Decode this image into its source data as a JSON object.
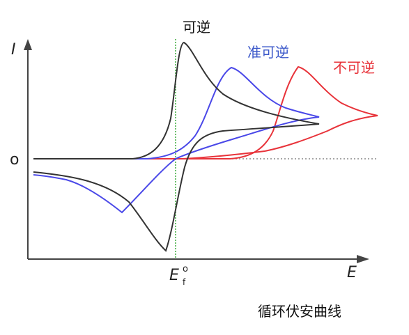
{
  "chart_data": {
    "type": "line",
    "title": "",
    "caption": "循环伏安曲线",
    "xlabel": "E",
    "ylabel": "I",
    "x_tick": {
      "main": "E",
      "sub": "f",
      "sup": "o"
    },
    "y_tick": "o",
    "dashed_baseline": true,
    "vertical_marker": "Ef°",
    "series": [
      {
        "name": "可逆",
        "color": "#333333",
        "kind": "reversible",
        "forward_peak_x": 2.0,
        "reverse_peak_x": -0.15,
        "forward_peak_current": 1.0,
        "reverse_peak_current": -0.85
      },
      {
        "name": "准可逆",
        "color": "#4a48e8",
        "kind": "quasi-reversible",
        "forward_peak_x": 10.0,
        "reverse_peak_x": -10.0,
        "forward_peak_current": 0.83,
        "reverse_peak_current": -0.5
      },
      {
        "name": "不可逆",
        "color": "#e8333a",
        "kind": "irreversible",
        "forward_peak_x": 22.0,
        "forward_peak_current": 0.83
      }
    ]
  },
  "colors": {
    "axis": "#444444",
    "marker": "#3caa3c",
    "dotted": "#888888",
    "series_label_reversible": "#111111",
    "series_label_quasi": "#3a57c9",
    "series_label_irreversible": "#e8333a"
  }
}
